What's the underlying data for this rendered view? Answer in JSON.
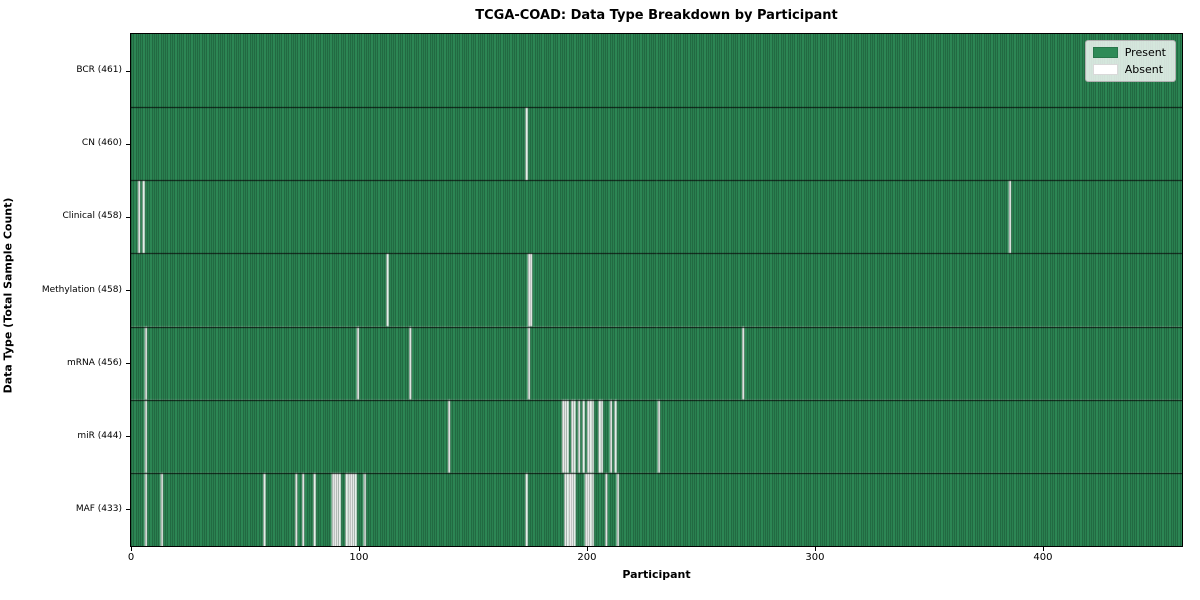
{
  "chart_data": {
    "type": "heatmap",
    "title": "TCGA-COAD: Data Type Breakdown by Participant",
    "xlabel": "Participant",
    "ylabel": "Data Type (Total Sample Count)",
    "n_participants": 461,
    "x_ticks": [
      0,
      100,
      200,
      300,
      400
    ],
    "xlim": [
      0,
      461
    ],
    "grid": false,
    "legend_position": "upper right",
    "legend": [
      {
        "label": "Present",
        "color": "#2e8b57"
      },
      {
        "label": "Absent",
        "color": "#ffffff"
      }
    ],
    "colors": {
      "present": "#2e8b57",
      "absent": "#ffffff",
      "cell_edge": "rgba(0,0,0,0.45)",
      "row_divider": "rgba(0,0,0,0.85)"
    },
    "rows": [
      {
        "label": "BCR (461)",
        "data_type": "BCR",
        "present_count": 461,
        "absent_participants": []
      },
      {
        "label": "CN (460)",
        "data_type": "CN",
        "present_count": 460,
        "absent_participants": [
          173
        ]
      },
      {
        "label": "Clinical (458)",
        "data_type": "Clinical",
        "present_count": 458,
        "absent_participants": [
          3,
          5,
          385
        ]
      },
      {
        "label": "Methylation (458)",
        "data_type": "Methylation",
        "present_count": 458,
        "absent_participants": [
          112,
          174,
          175
        ]
      },
      {
        "label": "mRNA (456)",
        "data_type": "mRNA",
        "present_count": 456,
        "absent_participants": [
          6,
          99,
          122,
          174,
          268
        ]
      },
      {
        "label": "miR (444)",
        "data_type": "miR",
        "present_count": 444,
        "absent_participants": [
          6,
          139,
          189,
          190,
          191,
          193,
          194,
          196,
          198,
          200,
          201,
          202,
          205,
          206,
          210,
          212,
          231
        ]
      },
      {
        "label": "MAF (433)",
        "data_type": "MAF",
        "present_count": 433,
        "absent_participants": [
          6,
          13,
          58,
          72,
          75,
          80,
          88,
          89,
          90,
          91,
          94,
          95,
          96,
          97,
          98,
          102,
          173,
          190,
          191,
          192,
          193,
          194,
          199,
          200,
          201,
          202,
          208,
          213
        ]
      }
    ]
  }
}
